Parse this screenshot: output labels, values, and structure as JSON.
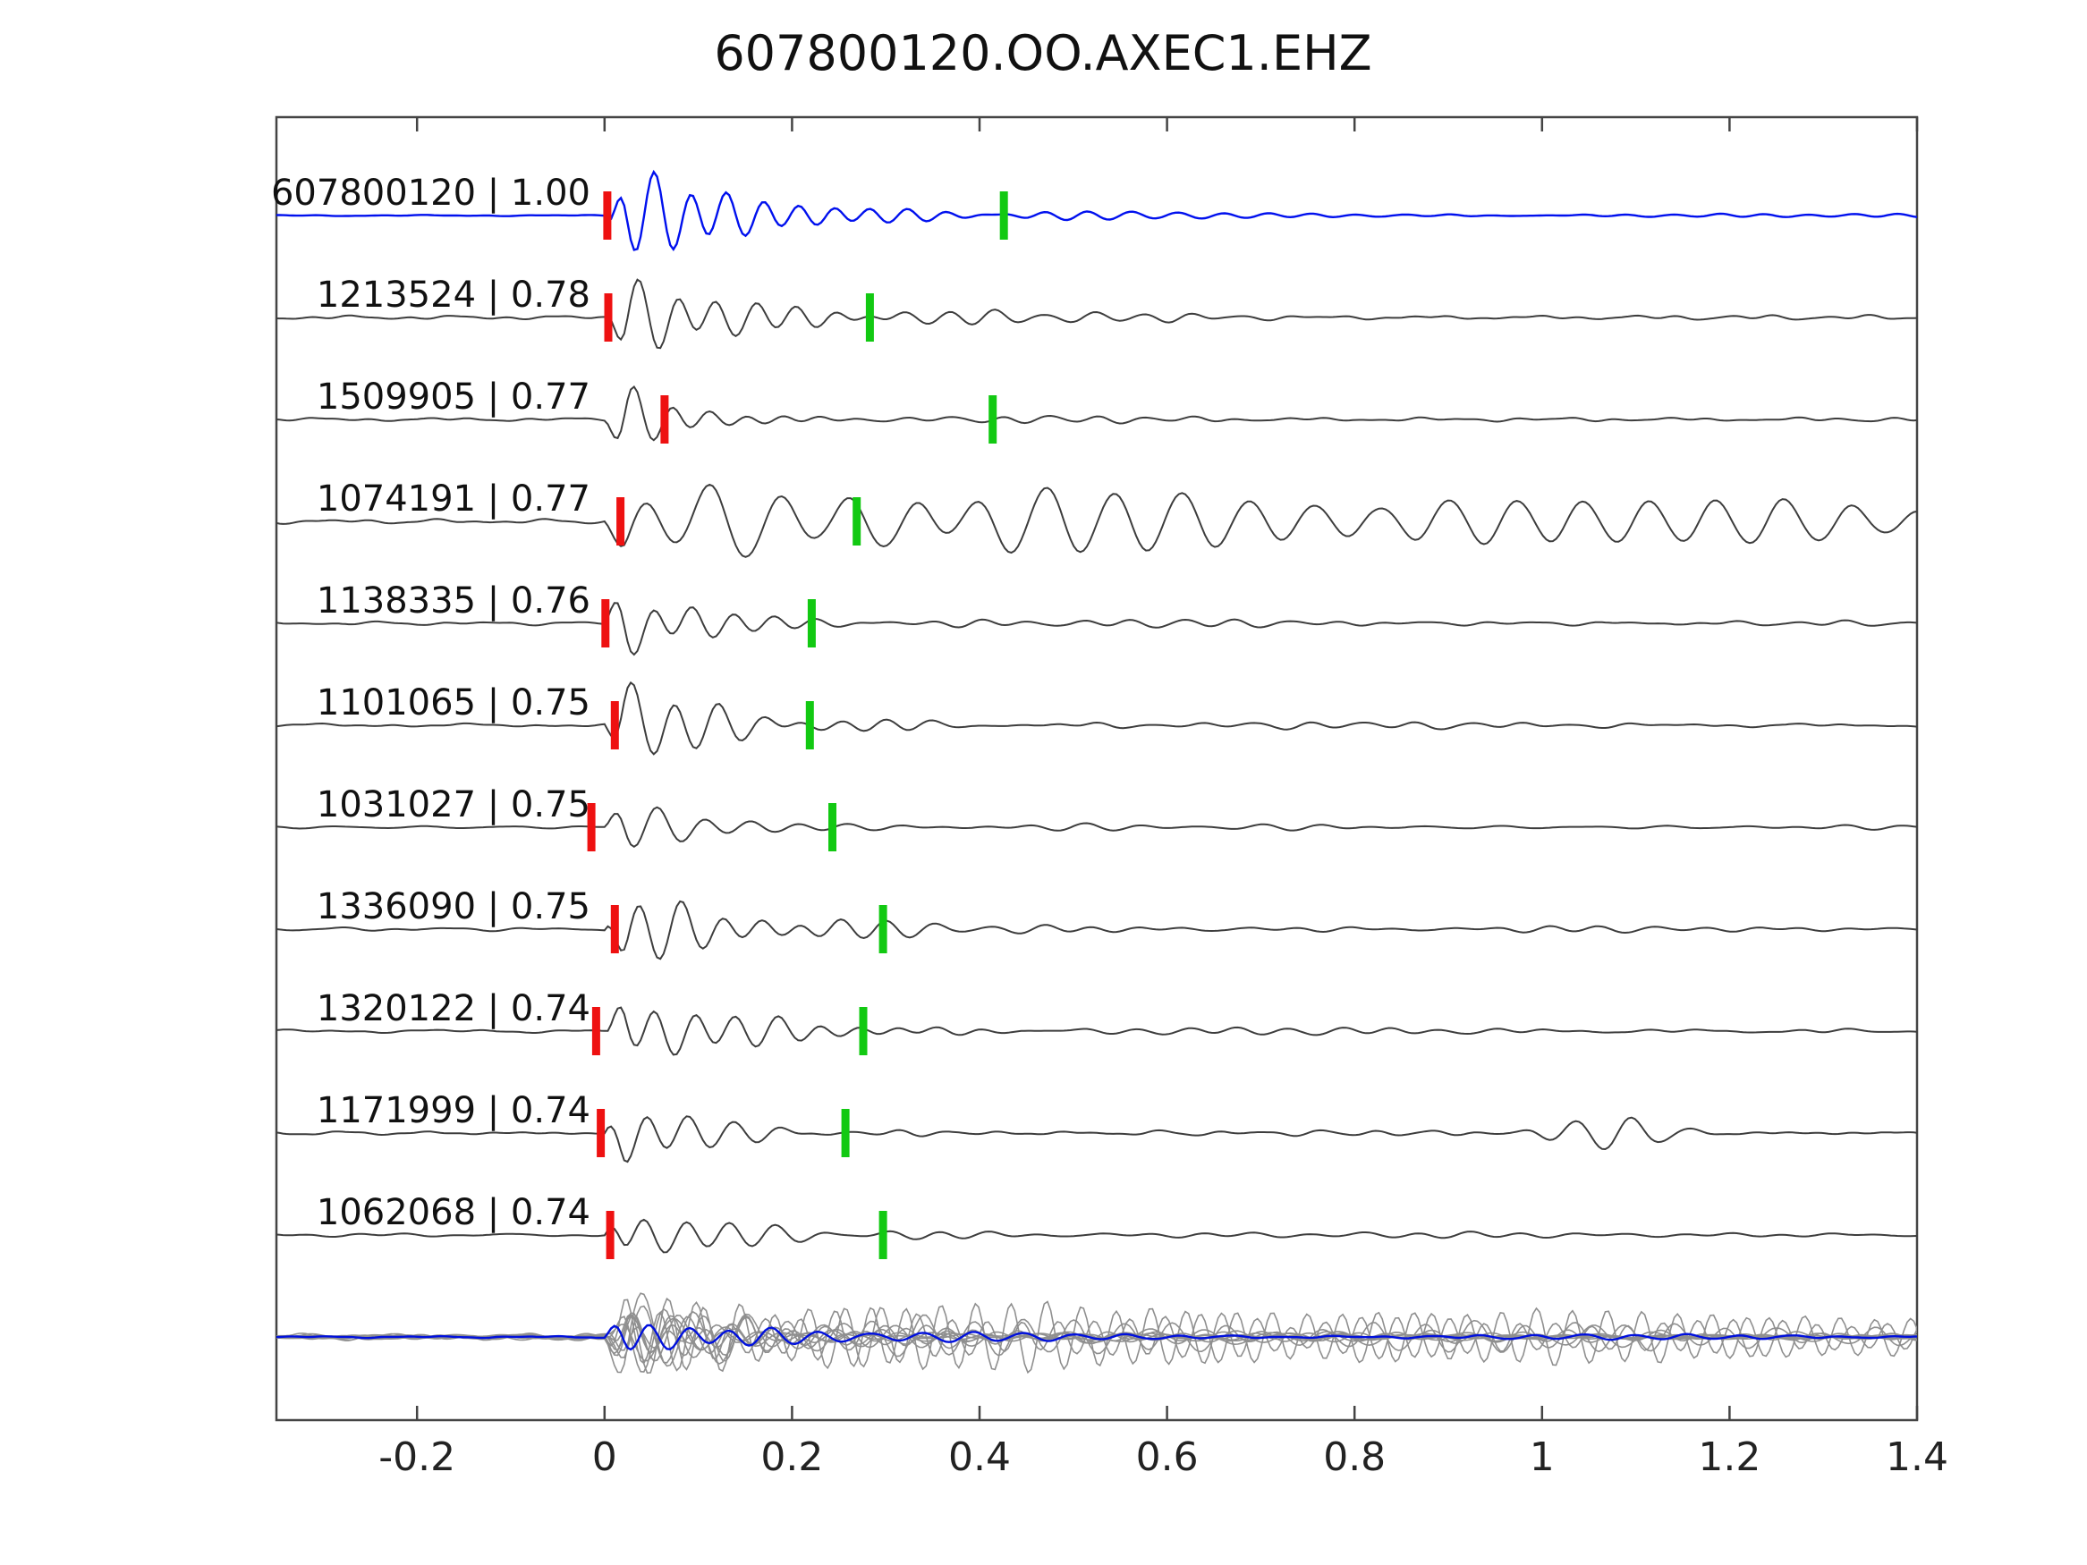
{
  "title": "607800120.OO.AXEC1.EHZ",
  "colors": {
    "reference": "#0010ee",
    "trace": "#3d3d3d",
    "overlay_gray": "#8f8f8f",
    "overlay_blue": "#0010dd",
    "pick_red": "#ee1111",
    "pick_green": "#12c912",
    "frame": "#444444"
  },
  "chart_data": {
    "type": "line",
    "title": "607800120.OO.AXEC1.EHZ",
    "xlabel": "",
    "ylabel": "",
    "x_range": [
      -0.35,
      1.4
    ],
    "x_ticks": [
      -0.2,
      0,
      0.2,
      0.4,
      0.6,
      0.8,
      1,
      1.2,
      1.4
    ],
    "x_tick_labels": [
      "-0.2",
      "0",
      "0.2",
      "0.4",
      "0.6",
      "0.8",
      "1",
      "1.2",
      "1.4"
    ],
    "grid": false,
    "legend": false,
    "traces": [
      {
        "id": "607800120",
        "score": "1.00",
        "label": "607800120 | 1.00",
        "color_role": "reference",
        "red_pick": 0.003,
        "green_pick": 0.426,
        "render": {
          "seed": 11,
          "amp": 58,
          "freq": 26,
          "tau": 0.13,
          "coda": 7,
          "noise": 0.8,
          "sustained": false,
          "late": 0
        }
      },
      {
        "id": "1213524",
        "score": "0.78",
        "label": "1213524 | 0.78",
        "color_role": "trace",
        "red_pick": 0.004,
        "green_pick": 0.283,
        "render": {
          "seed": 22,
          "amp": 46,
          "freq": 24,
          "tau": 0.13,
          "coda": 9,
          "noise": 2.6,
          "sustained": false,
          "late": 0
        }
      },
      {
        "id": "1509905",
        "score": "0.77",
        "label": "1509905 | 0.77",
        "color_role": "trace",
        "red_pick": 0.064,
        "green_pick": 0.414,
        "render": {
          "seed": 33,
          "amp": 42,
          "freq": 25,
          "tau": 0.07,
          "coda": 5,
          "noise": 2.2,
          "sustained": false,
          "late": 0
        }
      },
      {
        "id": "1074191",
        "score": "0.77",
        "label": "1074191 | 0.77",
        "color_role": "trace",
        "red_pick": 0.017,
        "green_pick": 0.269,
        "render": {
          "seed": 44,
          "amp": 40,
          "freq": 14,
          "tau": 0.5,
          "coda": 14,
          "noise": 3.0,
          "sustained": true,
          "late": 0
        }
      },
      {
        "id": "1138335",
        "score": "0.76",
        "label": "1138335 | 0.76",
        "color_role": "trace",
        "red_pick": 0.001,
        "green_pick": 0.221,
        "render": {
          "seed": 55,
          "amp": 40,
          "freq": 23,
          "tau": 0.1,
          "coda": 7,
          "noise": 2.4,
          "sustained": false,
          "late": 0
        }
      },
      {
        "id": "1101065",
        "score": "0.75",
        "label": "1101065 | 0.75",
        "color_role": "trace",
        "red_pick": 0.011,
        "green_pick": 0.219,
        "render": {
          "seed": 66,
          "amp": 44,
          "freq": 22,
          "tau": 0.12,
          "coda": 8,
          "noise": 2.2,
          "sustained": false,
          "late": 0
        }
      },
      {
        "id": "1031027",
        "score": "0.75",
        "label": "1031027 | 0.75",
        "color_role": "trace",
        "red_pick": -0.014,
        "green_pick": 0.243,
        "render": {
          "seed": 77,
          "amp": 42,
          "freq": 20,
          "tau": 0.08,
          "coda": 5,
          "noise": 2.2,
          "sustained": false,
          "late": 0
        }
      },
      {
        "id": "1336090",
        "score": "0.75",
        "label": "1336090 | 0.75",
        "color_role": "trace",
        "red_pick": 0.011,
        "green_pick": 0.297,
        "render": {
          "seed": 88,
          "amp": 44,
          "freq": 23,
          "tau": 0.12,
          "coda": 8,
          "noise": 2.4,
          "sustained": false,
          "late": 0
        }
      },
      {
        "id": "1320122",
        "score": "0.74",
        "label": "1320122 | 0.74",
        "color_role": "trace",
        "red_pick": -0.009,
        "green_pick": 0.276,
        "render": {
          "seed": 99,
          "amp": 46,
          "freq": 23,
          "tau": 0.12,
          "coda": 8,
          "noise": 2.2,
          "sustained": false,
          "late": 0
        }
      },
      {
        "id": "1171999",
        "score": "0.74",
        "label": "1171999 | 0.74",
        "color_role": "trace",
        "red_pick": -0.004,
        "green_pick": 0.257,
        "render": {
          "seed": 110,
          "amp": 38,
          "freq": 22,
          "tau": 0.09,
          "coda": 6,
          "noise": 2.2,
          "sustained": false,
          "late": 20
        }
      },
      {
        "id": "1062068",
        "score": "0.74",
        "label": "1062068 | 0.74",
        "color_role": "trace",
        "red_pick": 0.006,
        "green_pick": 0.297,
        "render": {
          "seed": 121,
          "amp": 36,
          "freq": 22,
          "tau": 0.1,
          "coda": 6,
          "noise": 2.2,
          "sustained": false,
          "late": 0
        }
      }
    ],
    "overlay": {
      "gray_count": 10,
      "gray": {
        "amp": 30,
        "freq": 22,
        "tau": 0.12,
        "coda": 10,
        "noise": 3.0
      },
      "blue": {
        "seed": 300,
        "amp": 28,
        "freq": 23,
        "tau": 0.1,
        "coda": 8,
        "noise": 1.2
      }
    }
  }
}
